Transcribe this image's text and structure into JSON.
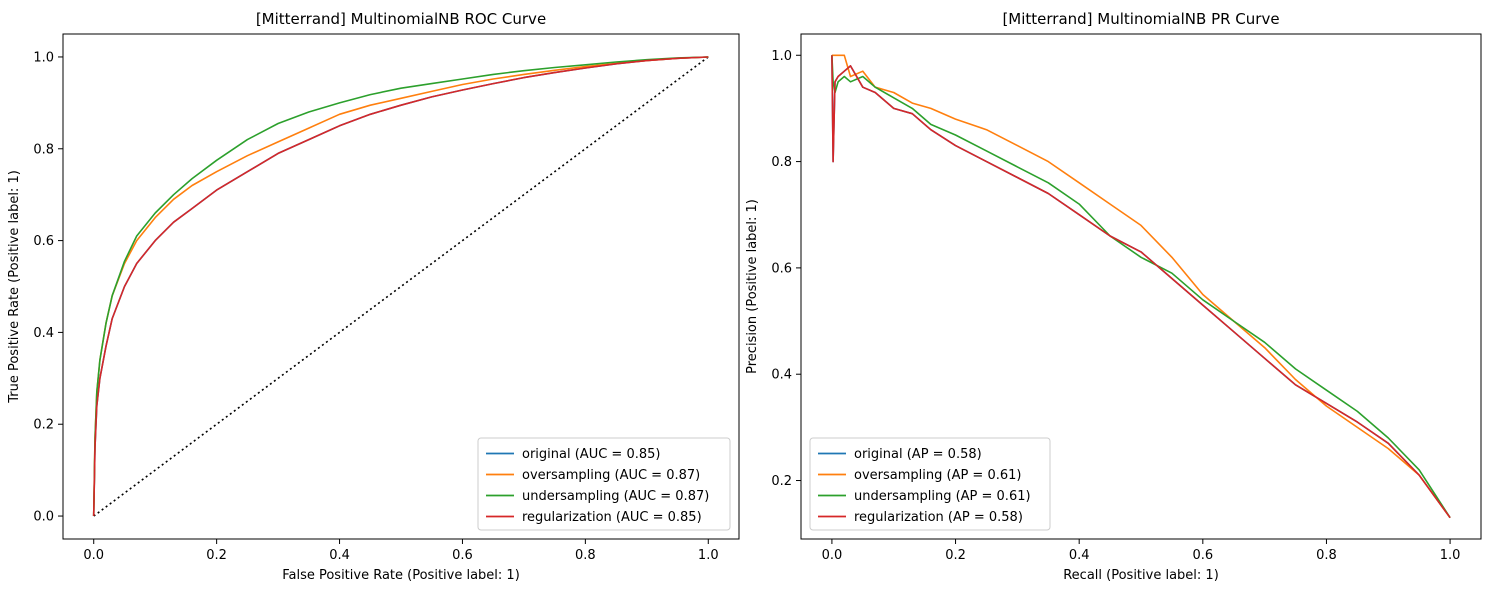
{
  "chart_data": [
    {
      "type": "line",
      "title": "[Mitterrand] MultinomialNB ROC Curve",
      "xlabel": "False Positive Rate (Positive label: 1)",
      "ylabel": "True Positive Rate (Positive label: 1)",
      "xlim": [
        -0.05,
        1.05
      ],
      "ylim": [
        -0.05,
        1.05
      ],
      "xticks": [
        "0.0",
        "0.2",
        "0.4",
        "0.6",
        "0.8",
        "1.0"
      ],
      "yticks": [
        "0.0",
        "0.2",
        "0.4",
        "0.6",
        "0.8",
        "1.0"
      ],
      "legend_position": "lower right",
      "reference_line": {
        "style": "dotted",
        "color": "#000000",
        "x": [
          0,
          1
        ],
        "y": [
          0,
          1
        ]
      },
      "series": [
        {
          "name": "original (AUC = 0.85)",
          "color": "#1f77b4",
          "x": [
            0,
            0.002,
            0.005,
            0.01,
            0.02,
            0.03,
            0.05,
            0.07,
            0.1,
            0.13,
            0.16,
            0.2,
            0.25,
            0.3,
            0.35,
            0.4,
            0.45,
            0.5,
            0.55,
            0.6,
            0.65,
            0.7,
            0.75,
            0.8,
            0.85,
            0.9,
            0.95,
            1.0
          ],
          "y": [
            0,
            0.15,
            0.24,
            0.3,
            0.37,
            0.43,
            0.5,
            0.55,
            0.6,
            0.64,
            0.67,
            0.71,
            0.75,
            0.79,
            0.82,
            0.85,
            0.875,
            0.895,
            0.913,
            0.928,
            0.942,
            0.955,
            0.966,
            0.976,
            0.985,
            0.992,
            0.997,
            1.0
          ]
        },
        {
          "name": "oversampling (AUC = 0.87)",
          "color": "#ff7f0e",
          "x": [
            0,
            0.002,
            0.005,
            0.01,
            0.02,
            0.03,
            0.05,
            0.07,
            0.1,
            0.13,
            0.16,
            0.2,
            0.25,
            0.3,
            0.35,
            0.4,
            0.45,
            0.5,
            0.55,
            0.6,
            0.65,
            0.7,
            0.75,
            0.8,
            0.85,
            0.9,
            0.95,
            1.0
          ],
          "y": [
            0,
            0.17,
            0.27,
            0.34,
            0.42,
            0.48,
            0.55,
            0.6,
            0.65,
            0.69,
            0.72,
            0.75,
            0.785,
            0.815,
            0.845,
            0.875,
            0.895,
            0.91,
            0.925,
            0.94,
            0.952,
            0.962,
            0.971,
            0.979,
            0.986,
            0.992,
            0.997,
            1.0
          ]
        },
        {
          "name": "undersampling (AUC = 0.87)",
          "color": "#2ca02c",
          "x": [
            0,
            0.002,
            0.005,
            0.01,
            0.02,
            0.03,
            0.05,
            0.07,
            0.1,
            0.13,
            0.16,
            0.2,
            0.25,
            0.3,
            0.35,
            0.4,
            0.45,
            0.5,
            0.55,
            0.6,
            0.65,
            0.7,
            0.75,
            0.8,
            0.85,
            0.9,
            0.95,
            1.0
          ],
          "y": [
            0,
            0.17,
            0.27,
            0.34,
            0.42,
            0.48,
            0.555,
            0.61,
            0.66,
            0.7,
            0.735,
            0.775,
            0.82,
            0.855,
            0.88,
            0.9,
            0.918,
            0.932,
            0.942,
            0.952,
            0.962,
            0.97,
            0.977,
            0.983,
            0.989,
            0.994,
            0.998,
            1.0
          ]
        },
        {
          "name": "regularization (AUC = 0.85)",
          "color": "#d62728",
          "x": [
            0,
            0.002,
            0.005,
            0.01,
            0.02,
            0.03,
            0.05,
            0.07,
            0.1,
            0.13,
            0.16,
            0.2,
            0.25,
            0.3,
            0.35,
            0.4,
            0.45,
            0.5,
            0.55,
            0.6,
            0.65,
            0.7,
            0.75,
            0.8,
            0.85,
            0.9,
            0.95,
            1.0
          ],
          "y": [
            0,
            0.15,
            0.24,
            0.3,
            0.37,
            0.43,
            0.5,
            0.55,
            0.6,
            0.64,
            0.67,
            0.71,
            0.75,
            0.79,
            0.82,
            0.85,
            0.875,
            0.895,
            0.913,
            0.928,
            0.942,
            0.955,
            0.966,
            0.976,
            0.985,
            0.992,
            0.997,
            1.0
          ]
        }
      ]
    },
    {
      "type": "line",
      "title": "[Mitterrand] MultinomialNB PR Curve",
      "xlabel": "Recall (Positive label: 1)",
      "ylabel": "Precision (Positive label: 1)",
      "xlim": [
        -0.05,
        1.05
      ],
      "ylim": [
        0.09,
        1.04
      ],
      "xticks": [
        "0.0",
        "0.2",
        "0.4",
        "0.6",
        "0.8",
        "1.0"
      ],
      "yticks": [
        "0.2",
        "0.4",
        "0.6",
        "0.8",
        "1.0"
      ],
      "legend_position": "lower left",
      "series": [
        {
          "name": "original (AP = 0.58)",
          "color": "#1f77b4",
          "x": [
            0,
            0.002,
            0.005,
            0.01,
            0.02,
            0.03,
            0.05,
            0.07,
            0.1,
            0.13,
            0.16,
            0.2,
            0.25,
            0.3,
            0.35,
            0.4,
            0.45,
            0.5,
            0.55,
            0.6,
            0.65,
            0.7,
            0.75,
            0.8,
            0.85,
            0.9,
            0.95,
            1.0
          ],
          "y": [
            1.0,
            0.8,
            0.95,
            0.96,
            0.97,
            0.98,
            0.94,
            0.93,
            0.9,
            0.89,
            0.86,
            0.83,
            0.8,
            0.77,
            0.74,
            0.7,
            0.66,
            0.63,
            0.58,
            0.53,
            0.48,
            0.43,
            0.38,
            0.345,
            0.31,
            0.27,
            0.21,
            0.13
          ]
        },
        {
          "name": "oversampling (AP = 0.61)",
          "color": "#ff7f0e",
          "x": [
            0,
            0.002,
            0.005,
            0.01,
            0.02,
            0.03,
            0.05,
            0.07,
            0.1,
            0.13,
            0.16,
            0.2,
            0.25,
            0.3,
            0.35,
            0.4,
            0.45,
            0.5,
            0.55,
            0.6,
            0.65,
            0.7,
            0.75,
            0.8,
            0.85,
            0.9,
            0.95,
            1.0
          ],
          "y": [
            1.0,
            1.0,
            1.0,
            1.0,
            1.0,
            0.96,
            0.97,
            0.94,
            0.93,
            0.91,
            0.9,
            0.88,
            0.86,
            0.83,
            0.8,
            0.76,
            0.72,
            0.68,
            0.62,
            0.55,
            0.5,
            0.45,
            0.39,
            0.34,
            0.3,
            0.26,
            0.21,
            0.13
          ]
        },
        {
          "name": "undersampling (AP = 0.61)",
          "color": "#2ca02c",
          "x": [
            0,
            0.002,
            0.005,
            0.01,
            0.02,
            0.03,
            0.05,
            0.07,
            0.1,
            0.13,
            0.16,
            0.2,
            0.25,
            0.3,
            0.35,
            0.4,
            0.45,
            0.5,
            0.55,
            0.6,
            0.65,
            0.7,
            0.75,
            0.8,
            0.85,
            0.9,
            0.95,
            1.0
          ],
          "y": [
            1.0,
            0.95,
            0.93,
            0.95,
            0.96,
            0.95,
            0.96,
            0.94,
            0.92,
            0.9,
            0.87,
            0.85,
            0.82,
            0.79,
            0.76,
            0.72,
            0.66,
            0.62,
            0.59,
            0.54,
            0.5,
            0.46,
            0.41,
            0.37,
            0.33,
            0.28,
            0.22,
            0.13
          ]
        },
        {
          "name": "regularization (AP = 0.58)",
          "color": "#d62728",
          "x": [
            0,
            0.002,
            0.005,
            0.01,
            0.02,
            0.03,
            0.05,
            0.07,
            0.1,
            0.13,
            0.16,
            0.2,
            0.25,
            0.3,
            0.35,
            0.4,
            0.45,
            0.5,
            0.55,
            0.6,
            0.65,
            0.7,
            0.75,
            0.8,
            0.85,
            0.9,
            0.95,
            1.0
          ],
          "y": [
            1.0,
            0.8,
            0.95,
            0.96,
            0.97,
            0.98,
            0.94,
            0.93,
            0.9,
            0.89,
            0.86,
            0.83,
            0.8,
            0.77,
            0.74,
            0.7,
            0.66,
            0.63,
            0.58,
            0.53,
            0.48,
            0.43,
            0.38,
            0.345,
            0.31,
            0.27,
            0.21,
            0.13
          ]
        }
      ]
    }
  ]
}
